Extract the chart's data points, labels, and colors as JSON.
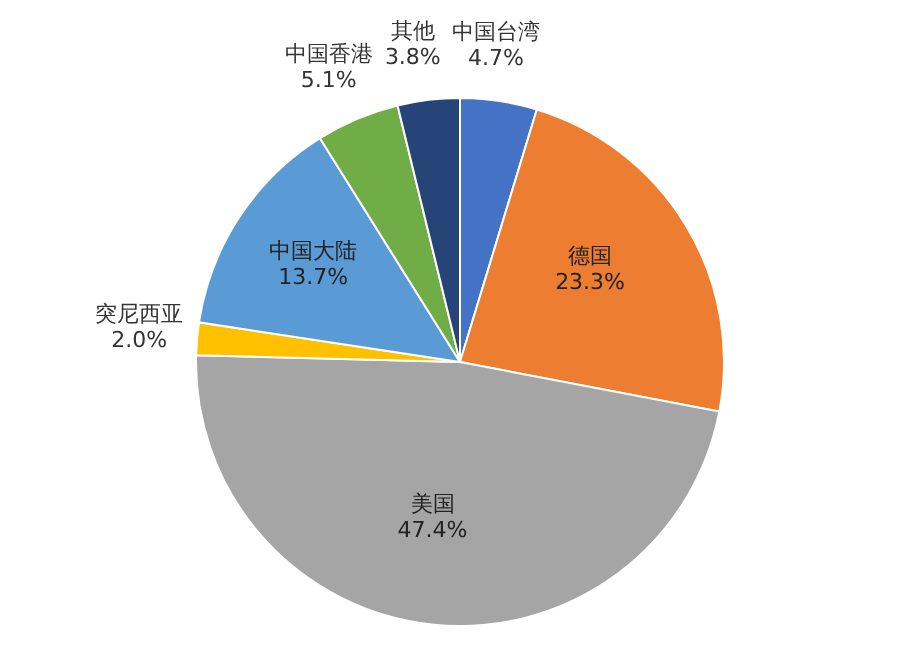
{
  "chart_data": {
    "type": "pie",
    "categories": [
      "中国台湾",
      "德国",
      "美国",
      "突尼西亚",
      "中国大陆",
      "中国香港",
      "其他"
    ],
    "values": [
      4.7,
      23.3,
      47.4,
      2.0,
      13.7,
      5.1,
      3.8
    ],
    "value_labels": [
      "4.7%",
      "23.3%",
      "47.4%",
      "2.0%",
      "13.7%",
      "5.1%",
      "3.8%"
    ],
    "colors": [
      "#4472c4",
      "#ed7d31",
      "#a5a5a5",
      "#ffc000",
      "#5b9bd5",
      "#70ad47",
      "#264478"
    ],
    "legend": false
  }
}
